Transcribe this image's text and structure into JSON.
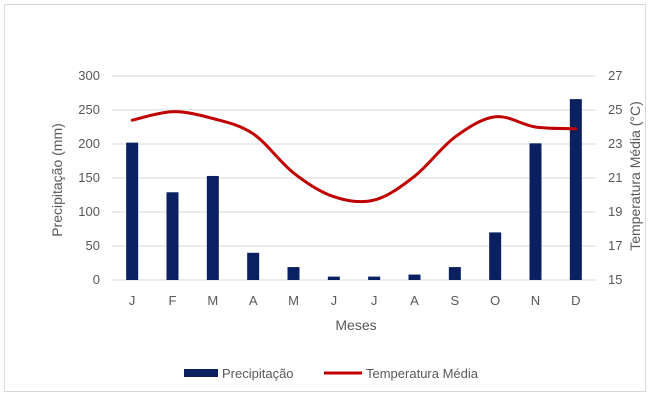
{
  "chart_data": {
    "type": "bar+line",
    "categories": [
      "J",
      "F",
      "M",
      "A",
      "M",
      "J",
      "J",
      "A",
      "S",
      "O",
      "N",
      "D"
    ],
    "series": [
      {
        "name": "Precipitação",
        "type": "bar",
        "axis": "left",
        "color": "#0b2060",
        "values": [
          202,
          129,
          153,
          40,
          19,
          5,
          5,
          8,
          19,
          70,
          201,
          266
        ]
      },
      {
        "name": "Temperatura Média",
        "type": "line",
        "axis": "right",
        "color": "#c00000",
        "values": [
          24.4,
          24.9,
          24.5,
          23.6,
          21.3,
          19.9,
          19.7,
          21.1,
          23.4,
          24.6,
          24.0,
          23.9
        ]
      }
    ],
    "xlabel": "Meses",
    "ylabel_left": "Precipitação (mm)",
    "ylabel_right": "Temperatura Média (°C)",
    "ylim_left": [
      0,
      300
    ],
    "ylim_right": [
      15,
      27
    ],
    "yticks_left": [
      "0",
      "50",
      "100",
      "150",
      "200",
      "250",
      "300"
    ],
    "yticks_right": [
      "15",
      "17",
      "19",
      "21",
      "23",
      "25",
      "27"
    ],
    "grid": "horizontal",
    "legend": "bottom",
    "gridline_color": "#d9d9d9"
  }
}
